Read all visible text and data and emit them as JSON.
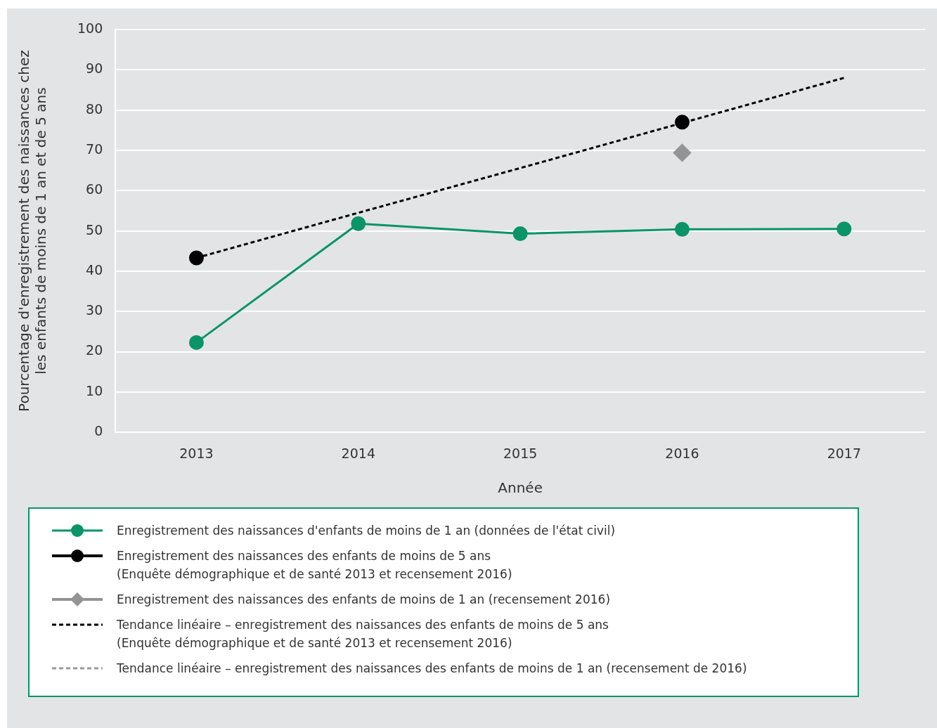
{
  "chart_data": {
    "type": "line",
    "xlabel": "Année",
    "ylabel": "Pourcentage d'enregistrement des naissances chez\nles enfants de moins de 1 an et de 5 ans",
    "categories": [
      "2013",
      "2014",
      "2015",
      "2016",
      "2017"
    ],
    "ylim": [
      0,
      100
    ],
    "yticks": [
      0,
      10,
      20,
      30,
      40,
      50,
      60,
      70,
      80,
      90,
      100
    ],
    "grid": "y",
    "legend": "bottom",
    "series": [
      {
        "name": "Enregistrement des naissances d'enfants de moins de 1 an (données de l'état civil)",
        "type": "line",
        "color": "#0a9468",
        "marker": "circle",
        "line_style": "solid",
        "values": [
          22.3,
          51.8,
          49.3,
          50.4,
          50.5
        ]
      },
      {
        "name": "Enregistrement des naissances des enfants de moins de 5 ans\n(Enquête démographique et de santé 2013 et recensement 2016)",
        "type": "scatter",
        "color": "#000000",
        "marker": "circle",
        "values": [
          43.3,
          null,
          null,
          77.0,
          null
        ]
      },
      {
        "name": "Enregistrement des naissances des enfants de moins de 1 an (recensement 2016)",
        "type": "scatter",
        "color": "#949494",
        "marker": "diamond",
        "values": [
          null,
          null,
          null,
          69.4,
          null
        ]
      },
      {
        "name": "Tendance linéaire – enregistrement des naissances des enfants de moins de 5 ans\n(Enquête démographique et de santé 2013 et recensement 2016)",
        "type": "line",
        "color": "#000000",
        "marker": "none",
        "line_style": "dashed",
        "values": [
          43.3,
          54.5,
          65.6,
          76.8,
          88.0
        ]
      },
      {
        "name": "Tendance linéaire – enregistrement des naissances des enfants de moins de 1 an (recensement de 2016)",
        "type": "line",
        "color": "#999999",
        "marker": "none",
        "line_style": "dashed",
        "values": [
          null,
          null,
          null,
          null,
          null
        ]
      }
    ]
  }
}
